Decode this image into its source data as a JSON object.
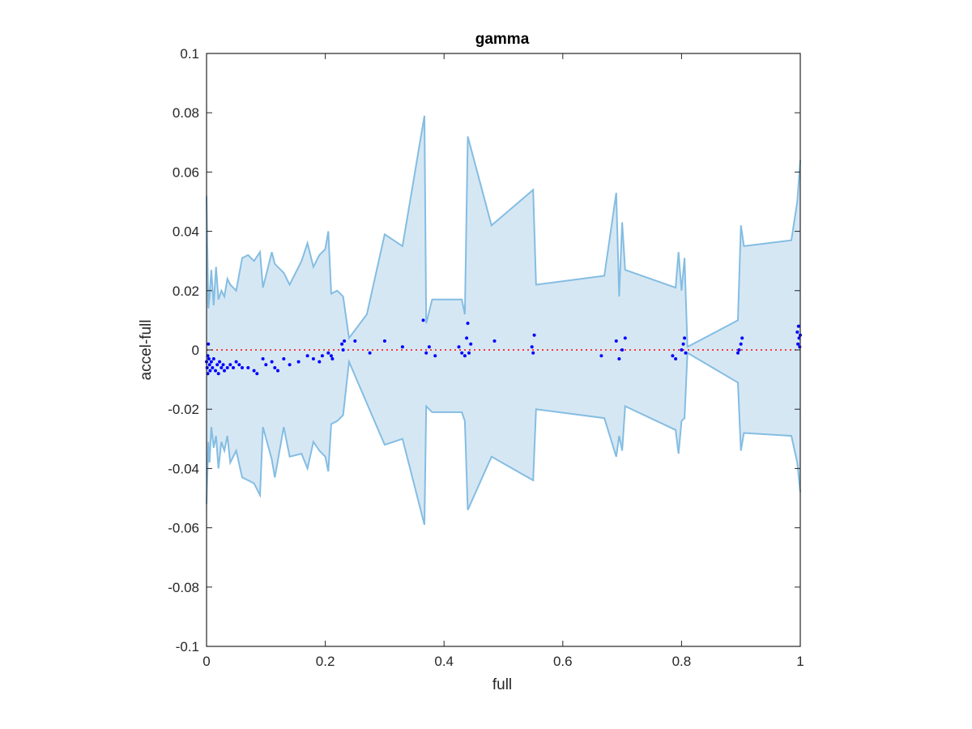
{
  "chart_data": {
    "type": "area",
    "title": "gamma",
    "xlabel": "full",
    "ylabel": "accel-full",
    "xlim": [
      0,
      1
    ],
    "ylim": [
      -0.1,
      0.1
    ],
    "x_ticks": [
      0,
      0.2,
      0.4,
      0.6,
      0.8,
      1
    ],
    "x_tick_labels": [
      "0",
      "0.2",
      "0.4",
      "0.6",
      "0.8",
      "1"
    ],
    "y_ticks": [
      0.1,
      0.08,
      0.06,
      0.04,
      0.02,
      0,
      -0.02,
      -0.04,
      -0.06,
      -0.08,
      -0.1
    ],
    "y_tick_labels": [
      "0.1",
      "0.08",
      "0.06",
      "0.04",
      "0.02",
      "0",
      "-0.02",
      "-0.04",
      "-0.06",
      "-0.08",
      "-0.1"
    ],
    "grid": false,
    "colors": {
      "band_fill": "#d6e7f4",
      "band_edge": "#84bde2",
      "points": "#0000ff",
      "zero_line": "#ff0000",
      "axes": "#262626"
    },
    "band": {
      "upper": [
        [
          0,
          0.052
        ],
        [
          0.003,
          0.014
        ],
        [
          0.005,
          0.018
        ],
        [
          0.008,
          0.027
        ],
        [
          0.012,
          0.015
        ],
        [
          0.016,
          0.028
        ],
        [
          0.02,
          0.017
        ],
        [
          0.025,
          0.02
        ],
        [
          0.03,
          0.018
        ],
        [
          0.035,
          0.024
        ],
        [
          0.04,
          0.022
        ],
        [
          0.05,
          0.02
        ],
        [
          0.06,
          0.031
        ],
        [
          0.07,
          0.032
        ],
        [
          0.08,
          0.03
        ],
        [
          0.09,
          0.033
        ],
        [
          0.095,
          0.021
        ],
        [
          0.11,
          0.033
        ],
        [
          0.115,
          0.029
        ],
        [
          0.13,
          0.026
        ],
        [
          0.14,
          0.022
        ],
        [
          0.16,
          0.03
        ],
        [
          0.17,
          0.036
        ],
        [
          0.18,
          0.028
        ],
        [
          0.19,
          0.032
        ],
        [
          0.2,
          0.034
        ],
        [
          0.205,
          0.04
        ],
        [
          0.21,
          0.019
        ],
        [
          0.22,
          0.02
        ],
        [
          0.23,
          0.018
        ],
        [
          0.24,
          0.004
        ],
        [
          0.27,
          0.012
        ],
        [
          0.3,
          0.039
        ],
        [
          0.33,
          0.035
        ],
        [
          0.367,
          0.079
        ],
        [
          0.37,
          0.009
        ],
        [
          0.38,
          0.017
        ],
        [
          0.43,
          0.017
        ],
        [
          0.435,
          0.012
        ],
        [
          0.44,
          0.072
        ],
        [
          0.48,
          0.042
        ],
        [
          0.55,
          0.054
        ],
        [
          0.555,
          0.022
        ],
        [
          0.67,
          0.025
        ],
        [
          0.69,
          0.053
        ],
        [
          0.695,
          0.018
        ],
        [
          0.7,
          0.043
        ],
        [
          0.705,
          0.027
        ],
        [
          0.79,
          0.021
        ],
        [
          0.795,
          0.033
        ],
        [
          0.8,
          0.02
        ],
        [
          0.805,
          0.031
        ],
        [
          0.81,
          0.001
        ],
        [
          0.895,
          0.01
        ],
        [
          0.9,
          0.042
        ],
        [
          0.905,
          0.035
        ],
        [
          0.985,
          0.037
        ],
        [
          0.995,
          0.05
        ],
        [
          1.0,
          0.064
        ]
      ],
      "lower": [
        [
          0,
          -0.052
        ],
        [
          0.003,
          -0.031
        ],
        [
          0.005,
          -0.038
        ],
        [
          0.008,
          -0.026
        ],
        [
          0.012,
          -0.033
        ],
        [
          0.016,
          -0.029
        ],
        [
          0.02,
          -0.04
        ],
        [
          0.025,
          -0.031
        ],
        [
          0.03,
          -0.034
        ],
        [
          0.035,
          -0.029
        ],
        [
          0.04,
          -0.038
        ],
        [
          0.05,
          -0.034
        ],
        [
          0.06,
          -0.043
        ],
        [
          0.07,
          -0.044
        ],
        [
          0.08,
          -0.045
        ],
        [
          0.09,
          -0.049
        ],
        [
          0.095,
          -0.026
        ],
        [
          0.11,
          -0.037
        ],
        [
          0.115,
          -0.043
        ],
        [
          0.13,
          -0.026
        ],
        [
          0.14,
          -0.036
        ],
        [
          0.16,
          -0.035
        ],
        [
          0.17,
          -0.04
        ],
        [
          0.18,
          -0.031
        ],
        [
          0.19,
          -0.034
        ],
        [
          0.2,
          -0.036
        ],
        [
          0.205,
          -0.041
        ],
        [
          0.21,
          -0.025
        ],
        [
          0.22,
          -0.024
        ],
        [
          0.23,
          -0.022
        ],
        [
          0.24,
          -0.004
        ],
        [
          0.27,
          -0.018
        ],
        [
          0.3,
          -0.032
        ],
        [
          0.33,
          -0.03
        ],
        [
          0.367,
          -0.059
        ],
        [
          0.37,
          -0.019
        ],
        [
          0.38,
          -0.021
        ],
        [
          0.43,
          -0.021
        ],
        [
          0.435,
          -0.024
        ],
        [
          0.44,
          -0.054
        ],
        [
          0.48,
          -0.036
        ],
        [
          0.55,
          -0.044
        ],
        [
          0.555,
          -0.02
        ],
        [
          0.67,
          -0.023
        ],
        [
          0.69,
          -0.036
        ],
        [
          0.695,
          -0.029
        ],
        [
          0.7,
          -0.034
        ],
        [
          0.705,
          -0.019
        ],
        [
          0.79,
          -0.027
        ],
        [
          0.795,
          -0.035
        ],
        [
          0.8,
          -0.024
        ],
        [
          0.805,
          -0.023
        ],
        [
          0.81,
          -0.001
        ],
        [
          0.895,
          -0.011
        ],
        [
          0.9,
          -0.034
        ],
        [
          0.905,
          -0.028
        ],
        [
          0.985,
          -0.029
        ],
        [
          0.995,
          -0.038
        ],
        [
          1.0,
          -0.048
        ]
      ]
    },
    "series": [
      {
        "type": "scatter",
        "points": [
          [
            0.0,
            -0.004
          ],
          [
            0.001,
            -0.006
          ],
          [
            0.002,
            -0.008
          ],
          [
            0.002,
            -0.002
          ],
          [
            0.003,
            0.002
          ],
          [
            0.004,
            -0.003
          ],
          [
            0.005,
            -0.005
          ],
          [
            0.006,
            -0.007
          ],
          [
            0.008,
            -0.004
          ],
          [
            0.01,
            -0.006
          ],
          [
            0.012,
            -0.003
          ],
          [
            0.015,
            -0.007
          ],
          [
            0.018,
            -0.005
          ],
          [
            0.02,
            -0.008
          ],
          [
            0.022,
            -0.004
          ],
          [
            0.025,
            -0.006
          ],
          [
            0.028,
            -0.005
          ],
          [
            0.03,
            -0.007
          ],
          [
            0.035,
            -0.006
          ],
          [
            0.04,
            -0.005
          ],
          [
            0.045,
            -0.006
          ],
          [
            0.05,
            -0.004
          ],
          [
            0.055,
            -0.005
          ],
          [
            0.06,
            -0.006
          ],
          [
            0.07,
            -0.006
          ],
          [
            0.08,
            -0.007
          ],
          [
            0.085,
            -0.008
          ],
          [
            0.095,
            -0.003
          ],
          [
            0.1,
            -0.005
          ],
          [
            0.11,
            -0.004
          ],
          [
            0.115,
            -0.006
          ],
          [
            0.12,
            -0.007
          ],
          [
            0.13,
            -0.003
          ],
          [
            0.14,
            -0.005
          ],
          [
            0.155,
            -0.004
          ],
          [
            0.17,
            -0.002
          ],
          [
            0.18,
            -0.003
          ],
          [
            0.19,
            -0.004
          ],
          [
            0.195,
            -0.002
          ],
          [
            0.205,
            -0.001
          ],
          [
            0.21,
            -0.002
          ],
          [
            0.212,
            -0.003
          ],
          [
            0.228,
            0.002
          ],
          [
            0.23,
            0.0
          ],
          [
            0.232,
            0.003
          ],
          [
            0.25,
            0.003
          ],
          [
            0.275,
            -0.001
          ],
          [
            0.3,
            0.003
          ],
          [
            0.33,
            0.001
          ],
          [
            0.365,
            0.01
          ],
          [
            0.37,
            -0.001
          ],
          [
            0.375,
            0.001
          ],
          [
            0.385,
            -0.002
          ],
          [
            0.425,
            0.001
          ],
          [
            0.43,
            -0.001
          ],
          [
            0.435,
            -0.002
          ],
          [
            0.438,
            0.004
          ],
          [
            0.44,
            0.009
          ],
          [
            0.442,
            -0.001
          ],
          [
            0.445,
            0.002
          ],
          [
            0.485,
            0.003
          ],
          [
            0.548,
            0.001
          ],
          [
            0.55,
            -0.001
          ],
          [
            0.552,
            0.005
          ],
          [
            0.665,
            -0.002
          ],
          [
            0.69,
            0.003
          ],
          [
            0.695,
            -0.003
          ],
          [
            0.7,
            0.0
          ],
          [
            0.705,
            0.004
          ],
          [
            0.785,
            -0.002
          ],
          [
            0.79,
            -0.003
          ],
          [
            0.8,
            0.0
          ],
          [
            0.803,
            0.002
          ],
          [
            0.805,
            0.004
          ],
          [
            0.807,
            -0.001
          ],
          [
            0.895,
            -0.001
          ],
          [
            0.897,
            0.0
          ],
          [
            0.9,
            0.002
          ],
          [
            0.902,
            0.004
          ],
          [
            0.995,
            0.006
          ],
          [
            0.996,
            0.002
          ],
          [
            0.997,
            0.008
          ],
          [
            0.998,
            0.004
          ],
          [
            0.999,
            0.001
          ],
          [
            1.0,
            0.005
          ]
        ]
      },
      {
        "type": "line",
        "style": "dotted",
        "points": [
          [
            0,
            0
          ],
          [
            1,
            0
          ]
        ]
      }
    ]
  }
}
